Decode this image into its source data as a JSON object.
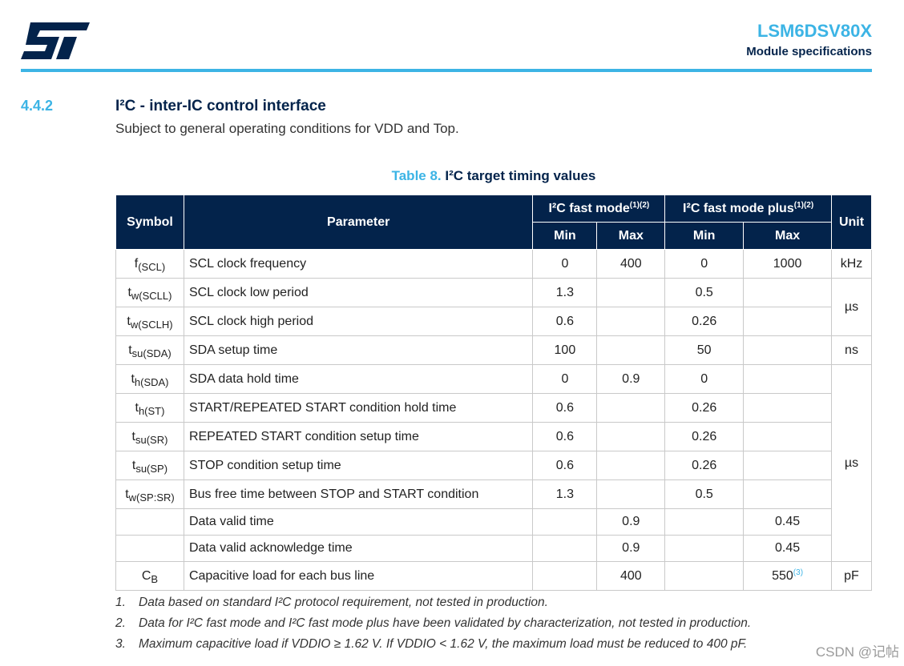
{
  "header": {
    "logo_text": "ST",
    "doc_title": "LSM6DSV80X",
    "doc_subtitle": "Module specifications",
    "accent_color": "#3cb4e5",
    "brand_color": "#03234b"
  },
  "section": {
    "number": "4.4.2",
    "title": "I²C - inter-IC control interface",
    "text": "Subject to general operating conditions for VDD and Top."
  },
  "table": {
    "caption_number": "Table 8.",
    "caption_title": "I²C target timing values",
    "headers": {
      "symbol": "Symbol",
      "parameter": "Parameter",
      "fast_mode": "I²C fast mode",
      "fast_mode_notes": "(1)(2)",
      "fast_mode_plus": "I²C fast mode plus",
      "fast_mode_plus_notes": "(1)(2)",
      "unit": "Unit",
      "min": "Min",
      "max": "Max"
    },
    "rows": [
      {
        "sym_main": "f",
        "sym_sub": "(SCL)",
        "param": "SCL clock frequency",
        "fm_min": "0",
        "fm_max": "400",
        "fmp_min": "0",
        "fmp_max": "1000"
      },
      {
        "sym_main": "t",
        "sym_sub": "w(SCLL)",
        "param": "SCL clock low period",
        "fm_min": "1.3",
        "fm_max": "",
        "fmp_min": "0.5",
        "fmp_max": ""
      },
      {
        "sym_main": "t",
        "sym_sub": "w(SCLH)",
        "param": "SCL clock high period",
        "fm_min": "0.6",
        "fm_max": "",
        "fmp_min": "0.26",
        "fmp_max": ""
      },
      {
        "sym_main": "t",
        "sym_sub": "su(SDA)",
        "param": "SDA setup time",
        "fm_min": "100",
        "fm_max": "",
        "fmp_min": "50",
        "fmp_max": ""
      },
      {
        "sym_main": "t",
        "sym_sub": "h(SDA)",
        "param": "SDA data hold time",
        "fm_min": "0",
        "fm_max": "0.9",
        "fmp_min": "0",
        "fmp_max": ""
      },
      {
        "sym_main": "t",
        "sym_sub": "h(ST)",
        "param": "START/REPEATED START condition hold time",
        "fm_min": "0.6",
        "fm_max": "",
        "fmp_min": "0.26",
        "fmp_max": ""
      },
      {
        "sym_main": "t",
        "sym_sub": "su(SR)",
        "param": "REPEATED START condition setup time",
        "fm_min": "0.6",
        "fm_max": "",
        "fmp_min": "0.26",
        "fmp_max": ""
      },
      {
        "sym_main": "t",
        "sym_sub": "su(SP)",
        "param": "STOP condition setup time",
        "fm_min": "0.6",
        "fm_max": "",
        "fmp_min": "0.26",
        "fmp_max": ""
      },
      {
        "sym_main": "t",
        "sym_sub": "w(SP:SR)",
        "param": "Bus free time between STOP and START condition",
        "fm_min": "1.3",
        "fm_max": "",
        "fmp_min": "0.5",
        "fmp_max": ""
      },
      {
        "sym_main": "",
        "sym_sub": "",
        "param": "Data valid time",
        "fm_min": "",
        "fm_max": "0.9",
        "fmp_min": "",
        "fmp_max": "0.45"
      },
      {
        "sym_main": "",
        "sym_sub": "",
        "param": "Data valid acknowledge time",
        "fm_min": "",
        "fm_max": "0.9",
        "fmp_min": "",
        "fmp_max": "0.45"
      },
      {
        "sym_main": "C",
        "sym_sub": "B",
        "param": "Capacitive load for each bus line",
        "fm_min": "",
        "fm_max": "400",
        "fmp_min": "",
        "fmp_max": "550",
        "fmp_max_note": "(3)"
      }
    ],
    "units": {
      "khz": "kHz",
      "us_a": "µs",
      "ns": "ns",
      "us_b": "µs",
      "pf": "pF"
    }
  },
  "notes": [
    {
      "num": "1.",
      "text": "Data based on standard I²C protocol requirement, not tested in production."
    },
    {
      "num": "2.",
      "text": "Data for I²C fast mode and I²C fast mode plus have been validated by characterization, not tested in production."
    },
    {
      "num": "3.",
      "text": "Maximum capacitive load if VDDIO ≥ 1.62 V. If VDDIO < 1.62 V, the maximum load must be reduced to 400 pF."
    }
  ],
  "watermark": "CSDN @记帖"
}
